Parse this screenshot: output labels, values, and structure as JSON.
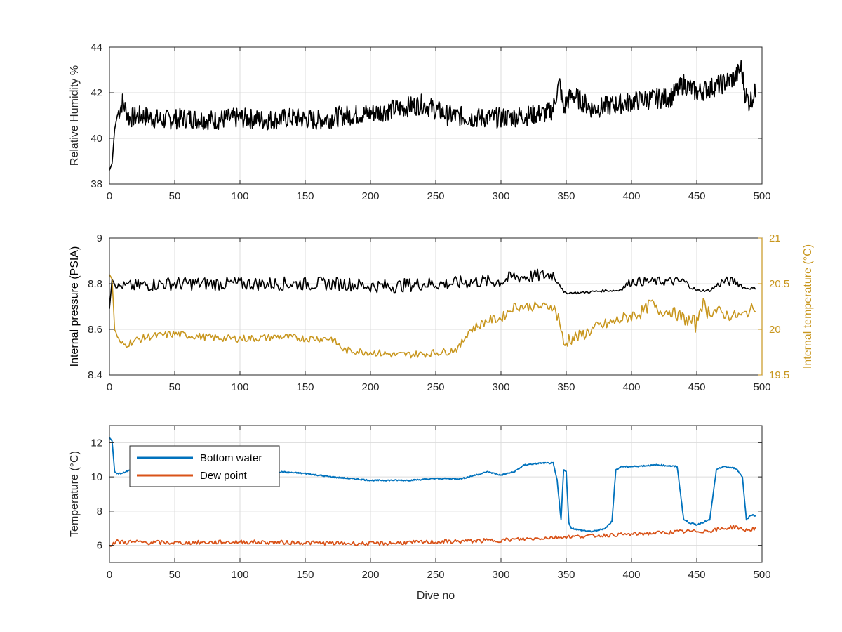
{
  "chart_data": [
    {
      "type": "line",
      "xlabel": "",
      "ylabel": "Relative Humidity %",
      "xlim": [
        0,
        500
      ],
      "ylim": [
        38,
        44
      ],
      "xticks": [
        0,
        50,
        100,
        150,
        200,
        250,
        300,
        350,
        400,
        450,
        500
      ],
      "yticks": [
        38,
        40,
        42,
        44
      ],
      "grid": true,
      "series": [
        {
          "color": "#000000",
          "x": [
            0,
            2,
            4,
            6,
            10,
            15,
            25,
            40,
            60,
            80,
            100,
            120,
            140,
            160,
            180,
            200,
            220,
            240,
            260,
            280,
            300,
            320,
            335,
            340,
            343,
            345,
            348,
            350,
            355,
            370,
            390,
            410,
            430,
            440,
            450,
            460,
            470,
            480,
            484,
            487,
            490,
            495
          ],
          "y": [
            38.6,
            38.9,
            40.4,
            41.0,
            41.6,
            40.9,
            41.0,
            40.8,
            40.9,
            40.8,
            40.9,
            40.8,
            40.9,
            40.8,
            41.0,
            41.1,
            41.3,
            41.5,
            41.0,
            40.9,
            40.9,
            41.0,
            41.1,
            41.3,
            42.1,
            42.4,
            41.2,
            41.6,
            41.9,
            41.3,
            41.5,
            41.7,
            41.8,
            42.4,
            42.0,
            42.2,
            42.4,
            42.7,
            43.1,
            42.0,
            41.6,
            42.0
          ]
        }
      ]
    },
    {
      "type": "line",
      "xlabel": "",
      "ylabel": "Internal pressure (PSIA)",
      "y2label": "Internal temperature (°C)",
      "xlim": [
        0,
        500
      ],
      "ylim": [
        8.4,
        9
      ],
      "y2lim": [
        19.5,
        21
      ],
      "xticks": [
        0,
        50,
        100,
        150,
        200,
        250,
        300,
        350,
        400,
        450,
        500
      ],
      "yticks": [
        8.4,
        8.6,
        8.8,
        9
      ],
      "y2ticks": [
        19.5,
        20,
        20.5,
        21
      ],
      "y2ticklabels": [
        "19.5",
        "20",
        "20.5",
        "21"
      ],
      "y2color": "#C8961E",
      "grid": true,
      "series": [
        {
          "axis": "left",
          "color": "#000000",
          "x": [
            0,
            2,
            5,
            10,
            20,
            40,
            60,
            80,
            100,
            120,
            140,
            160,
            180,
            200,
            220,
            240,
            260,
            280,
            300,
            310,
            320,
            340,
            345,
            348,
            350,
            360,
            380,
            390,
            400,
            420,
            440,
            450,
            460,
            470,
            480,
            487,
            495
          ],
          "y": [
            8.69,
            8.82,
            8.79,
            8.79,
            8.79,
            8.8,
            8.8,
            8.8,
            8.8,
            8.8,
            8.8,
            8.8,
            8.8,
            8.79,
            8.79,
            8.8,
            8.8,
            8.81,
            8.81,
            8.83,
            8.83,
            8.84,
            8.8,
            8.76,
            8.76,
            8.76,
            8.77,
            8.77,
            8.81,
            8.81,
            8.81,
            8.77,
            8.77,
            8.81,
            8.81,
            8.78,
            8.78
          ],
          "oscillation": [
            0,
            0,
            0.01,
            0.02,
            0.03,
            0.03,
            0.03,
            0.03,
            0.03,
            0.03,
            0.03,
            0.03,
            0.03,
            0.03,
            0.03,
            0.03,
            0.03,
            0.03,
            0.03,
            0.03,
            0.03,
            0.03,
            0.01,
            0.005,
            0.005,
            0.005,
            0.005,
            0.005,
            0.02,
            0.02,
            0.02,
            0.005,
            0.005,
            0.02,
            0.02,
            0.005,
            0.005
          ]
        },
        {
          "axis": "right",
          "color": "#C8961E",
          "x": [
            0,
            2,
            4,
            8,
            12,
            20,
            30,
            50,
            70,
            90,
            110,
            130,
            150,
            170,
            180,
            200,
            220,
            240,
            260,
            268,
            275,
            290,
            300,
            310,
            330,
            340,
            345,
            348,
            352,
            360,
            370,
            380,
            390,
            400,
            410,
            415,
            420,
            430,
            440,
            450,
            453,
            458,
            465,
            475,
            485,
            490,
            495
          ],
          "y": [
            20.6,
            20.55,
            20.0,
            19.85,
            19.83,
            19.88,
            19.92,
            19.95,
            19.92,
            19.9,
            19.9,
            19.92,
            19.9,
            19.9,
            19.77,
            19.75,
            19.72,
            19.73,
            19.76,
            19.8,
            19.98,
            20.1,
            20.12,
            20.25,
            20.25,
            20.25,
            20.1,
            19.8,
            19.9,
            19.92,
            20.0,
            20.05,
            20.1,
            20.15,
            20.2,
            20.3,
            20.2,
            20.2,
            20.12,
            20.05,
            20.3,
            20.2,
            20.2,
            20.15,
            20.15,
            20.2,
            20.25
          ],
          "oscillation": [
            0,
            0,
            0.02,
            0.03,
            0.04,
            0.04,
            0.04,
            0.04,
            0.04,
            0.04,
            0.04,
            0.04,
            0.04,
            0.04,
            0.04,
            0.04,
            0.04,
            0.04,
            0.04,
            0.04,
            0.05,
            0.05,
            0.05,
            0.05,
            0.05,
            0.05,
            0.1,
            0.1,
            0.08,
            0.07,
            0.07,
            0.07,
            0.07,
            0.07,
            0.07,
            0.06,
            0.06,
            0.06,
            0.07,
            0.1,
            0.1,
            0.08,
            0.07,
            0.06,
            0.06,
            0.06,
            0.06
          ]
        }
      ]
    },
    {
      "type": "line",
      "xlabel": "Dive no",
      "ylabel": "Temperature (°C)",
      "xlim": [
        0,
        500
      ],
      "ylim": [
        5,
        13
      ],
      "xticks": [
        0,
        50,
        100,
        150,
        200,
        250,
        300,
        350,
        400,
        450,
        500
      ],
      "yticks": [
        6,
        8,
        10,
        12
      ],
      "grid": true,
      "legend": "top-left",
      "series": [
        {
          "name": "Bottom water",
          "color": "#0072BD",
          "x": [
            0,
            2,
            4,
            6,
            10,
            15,
            20,
            50,
            100,
            130,
            150,
            170,
            200,
            230,
            250,
            270,
            290,
            300,
            310,
            318,
            330,
            340,
            343,
            346,
            348,
            350,
            352,
            354,
            360,
            370,
            380,
            385,
            388,
            392,
            400,
            420,
            435,
            440,
            445,
            450,
            460,
            465,
            470,
            480,
            485,
            488,
            492,
            495
          ],
          "y": [
            12.3,
            12.1,
            10.3,
            10.2,
            10.2,
            10.4,
            10.3,
            10.4,
            10.4,
            10.3,
            10.2,
            10.0,
            9.8,
            9.8,
            9.9,
            9.9,
            10.3,
            10.1,
            10.3,
            10.7,
            10.8,
            10.8,
            9.8,
            7.5,
            10.4,
            10.3,
            7.3,
            7.0,
            6.9,
            6.8,
            7.0,
            7.4,
            10.4,
            10.6,
            10.6,
            10.7,
            10.6,
            7.5,
            7.3,
            7.2,
            7.5,
            10.4,
            10.6,
            10.5,
            10.0,
            7.5,
            7.8,
            7.7
          ]
        },
        {
          "name": "Dew point",
          "color": "#D95319",
          "x": [
            0,
            5,
            50,
            100,
            150,
            200,
            250,
            300,
            350,
            400,
            440,
            460,
            480,
            485,
            490,
            495
          ],
          "y": [
            6.0,
            6.2,
            6.15,
            6.2,
            6.15,
            6.1,
            6.2,
            6.3,
            6.5,
            6.65,
            6.8,
            6.85,
            7.1,
            6.9,
            6.9,
            7.0
          ],
          "oscillation": [
            0.1,
            0.15,
            0.12,
            0.12,
            0.12,
            0.12,
            0.12,
            0.12,
            0.1,
            0.1,
            0.12,
            0.12,
            0.12,
            0.12,
            0.1,
            0.1
          ]
        }
      ]
    }
  ]
}
